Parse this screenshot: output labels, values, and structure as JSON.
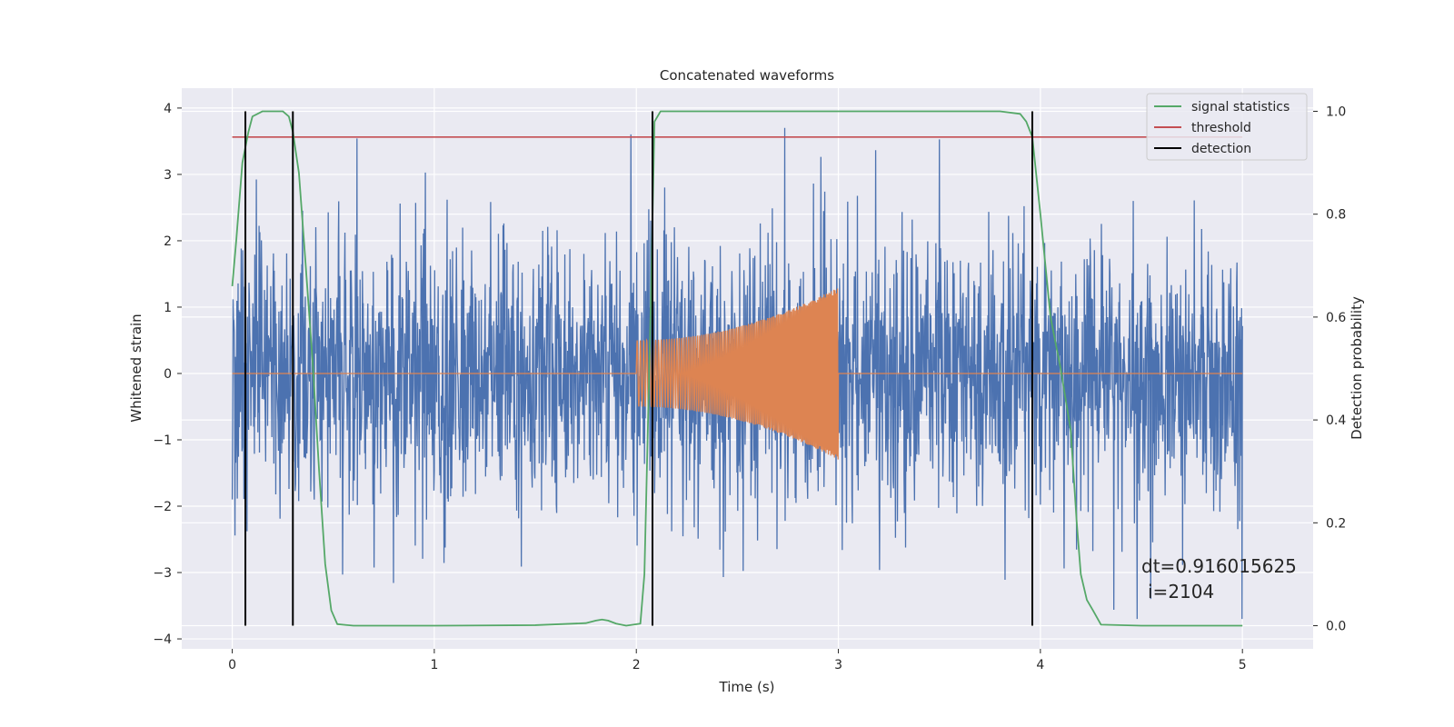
{
  "chart_data": {
    "type": "line",
    "title": "Concatenated waveforms",
    "xlabel": "Time (s)",
    "ylabel": "Whitened strain",
    "ylabel_right": "Detection probability",
    "xlim": [
      -0.25,
      5.35
    ],
    "ylim": [
      -4.15,
      4.3
    ],
    "ylim_right": [
      -0.045,
      1.045
    ],
    "x_ticks": [
      0,
      1,
      2,
      3,
      4,
      5
    ],
    "y_ticks": [
      -4,
      -3,
      -2,
      -1,
      0,
      1,
      2,
      3,
      4
    ],
    "y_ticks_right": [
      0.0,
      0.2,
      0.4,
      0.6,
      0.8,
      1.0
    ],
    "grid": true,
    "legend_position": "top-right",
    "legend": [
      {
        "label": "signal statistics",
        "color": "#55a868"
      },
      {
        "label": "threshold",
        "color": "#c44e52"
      },
      {
        "label": "detection",
        "color": "#000000"
      }
    ],
    "strain_noise": {
      "color": "#4c72b0",
      "x_range": [
        0,
        5
      ],
      "typical_amplitude": 1.6,
      "peak_amplitude": 3.7
    },
    "injected_waveform": {
      "color": "#dd8452",
      "start": 2.0,
      "end": 3.0,
      "amplitude_start": 0.5,
      "amplitude_end": 1.3
    },
    "signal_statistics": {
      "color": "#55a868",
      "x": [
        0,
        0.02,
        0.05,
        0.08,
        0.1,
        0.15,
        0.2,
        0.25,
        0.28,
        0.3,
        0.33,
        0.36,
        0.4,
        0.43,
        0.46,
        0.49,
        0.52,
        0.6,
        1.0,
        1.5,
        1.75,
        1.8,
        1.83,
        1.86,
        1.9,
        1.95,
        2.02,
        2.04,
        2.07,
        2.09,
        2.12,
        2.2,
        3.0,
        3.8,
        3.9,
        3.93,
        3.96,
        4.0,
        4.05,
        4.1,
        4.15,
        4.18,
        4.2,
        4.23,
        4.26,
        4.3,
        4.5,
        5.0
      ],
      "y": [
        0.66,
        0.75,
        0.9,
        0.96,
        0.99,
        1.0,
        1.0,
        1.0,
        0.99,
        0.96,
        0.88,
        0.72,
        0.5,
        0.3,
        0.12,
        0.03,
        0.003,
        0.0,
        0.0,
        0.001,
        0.005,
        0.01,
        0.012,
        0.01,
        0.004,
        0.0,
        0.004,
        0.1,
        0.6,
        0.98,
        1.0,
        1.0,
        1.0,
        1.0,
        0.995,
        0.98,
        0.95,
        0.8,
        0.6,
        0.5,
        0.38,
        0.2,
        0.1,
        0.05,
        0.03,
        0.002,
        0.0,
        0.0
      ]
    },
    "threshold": {
      "value": 0.95,
      "color": "#c44e52"
    },
    "detections": {
      "x": [
        0.065,
        0.3,
        2.08,
        3.96
      ],
      "color": "#000000"
    },
    "annotation": {
      "line1": "dt=0.916015625",
      "line2": "i=2104"
    }
  }
}
